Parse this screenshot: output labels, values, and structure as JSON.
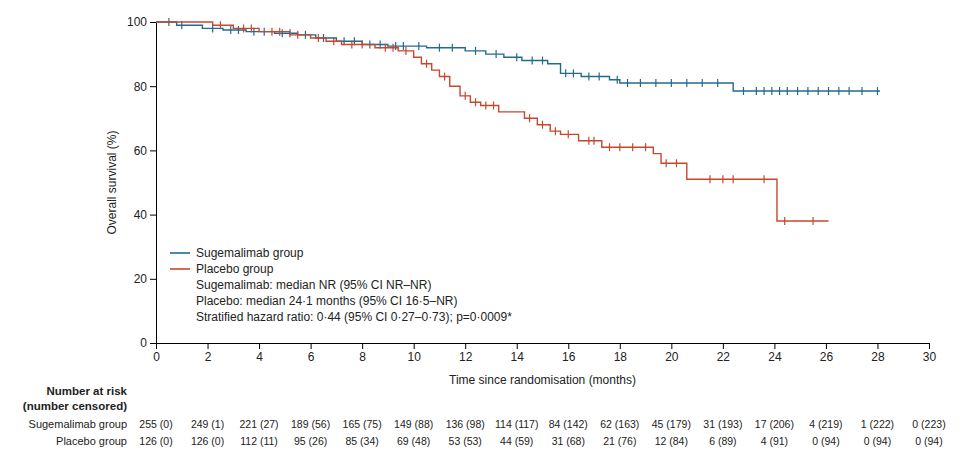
{
  "chart_data": {
    "type": "line",
    "x_label": "Time since randomisation (months)",
    "y_label": "Overall survival (%)",
    "xlim": [
      0,
      30
    ],
    "xticks": [
      0,
      2,
      4,
      6,
      8,
      10,
      12,
      14,
      16,
      18,
      20,
      22,
      24,
      26,
      28,
      30
    ],
    "ylim": [
      0,
      100
    ],
    "yticks": [
      0,
      20,
      40,
      60,
      80,
      100
    ],
    "legend": "bottom-left",
    "line_style": "step",
    "marker": "censor-tick",
    "series": [
      {
        "name": "Sugemalimab group",
        "color": "#236b8e",
        "x": [
          0,
          0.8,
          1.8,
          2.6,
          3.5,
          4.6,
          5.5,
          6.2,
          7,
          8,
          9,
          10.5,
          12,
          12.8,
          13.5,
          14.2,
          15.2,
          15.7,
          16.5,
          17.6,
          18,
          22.4,
          28.1
        ],
        "values": [
          100,
          99,
          98,
          97.5,
          97,
          96.5,
          96,
          95,
          94,
          93,
          92.5,
          92,
          91,
          90,
          89,
          88,
          87,
          84,
          83,
          82,
          81,
          78.5,
          78.5
        ],
        "censor_x": [
          0.5,
          1.0,
          2.2,
          2.9,
          3.2,
          3.8,
          4.2,
          4.9,
          5.2,
          5.8,
          6.5,
          7.3,
          7.7,
          8.3,
          8.7,
          9.3,
          9.6,
          10.2,
          11.0,
          11.5,
          12.4,
          13.2,
          14.0,
          14.6,
          15.0,
          15.9,
          16.2,
          16.8,
          17.2,
          17.9,
          18.3,
          18.8,
          19.4,
          20.0,
          20.6,
          21.2,
          21.8,
          22.8,
          23.3,
          23.6,
          23.9,
          24.2,
          24.5,
          24.9,
          25.3,
          25.7,
          26.1,
          26.5,
          26.9,
          27.4,
          28.0
        ],
        "censor_values": [
          100,
          99,
          98,
          97.5,
          97.5,
          97,
          97,
          96.5,
          96.5,
          96,
          95,
          94,
          94,
          93,
          93,
          92.5,
          92.5,
          92.5,
          92,
          92,
          91,
          90,
          89,
          88,
          88,
          84,
          84,
          83,
          83,
          82,
          81,
          81,
          81,
          81,
          81,
          81,
          81,
          78.5,
          78.5,
          78.5,
          78.5,
          78.5,
          78.5,
          78.5,
          78.5,
          78.5,
          78.5,
          78.5,
          78.5,
          78.5,
          78.5
        ]
      },
      {
        "name": "Placebo group",
        "color": "#c8472d",
        "x": [
          0,
          2.2,
          3.0,
          4.0,
          5.2,
          6.0,
          6.6,
          7.2,
          8.5,
          9.4,
          10.0,
          10.3,
          10.7,
          11.0,
          11.4,
          11.8,
          12.2,
          12.6,
          13.3,
          14.3,
          14.8,
          15.3,
          15.7,
          16.4,
          17.3,
          19.3,
          19.6,
          20.6,
          24.1,
          26.1
        ],
        "values": [
          100,
          99,
          98,
          97,
          96,
          95,
          94,
          93,
          92,
          91,
          89,
          87,
          85,
          83,
          80,
          77,
          75,
          74,
          72,
          70,
          68,
          66,
          65,
          63,
          61,
          59,
          56,
          51,
          38,
          38
        ],
        "censor_x": [
          2.5,
          3.4,
          3.7,
          4.5,
          4.8,
          5.5,
          6.3,
          6.9,
          7.6,
          8.0,
          8.9,
          9.2,
          9.7,
          10.5,
          11.2,
          12.0,
          12.4,
          12.8,
          13.1,
          14.5,
          15.0,
          15.5,
          16.0,
          16.8,
          17.0,
          17.6,
          18.0,
          18.5,
          19.0,
          19.8,
          20.2,
          21.5,
          22.0,
          22.4,
          23.6,
          24.4,
          25.5
        ],
        "censor_values": [
          99,
          98,
          98,
          97,
          97,
          96,
          95,
          94,
          93,
          93,
          92,
          92,
          91,
          87,
          83,
          77,
          75,
          74,
          74,
          70,
          68,
          66,
          65,
          63,
          63,
          61,
          61,
          61,
          61,
          56,
          56,
          51,
          51,
          51,
          51,
          38,
          38
        ]
      }
    ],
    "annotations": [
      "Sugemalimab: median NR (95% CI NR–NR)",
      "Placebo: median 24·1 months (95% CI 16·5–NR)",
      "Stratified hazard ratio: 0·44 (95% CI 0·27–0·73); p=0·0009*"
    ],
    "risk_table": {
      "title": "Number at risk",
      "subtitle": "(number censored)",
      "rows": [
        {
          "name": "Sugemalimab group",
          "cells": [
            "255 (0)",
            "249 (1)",
            "221 (27)",
            "189 (56)",
            "165 (75)",
            "149 (88)",
            "136 (98)",
            "114 (117)",
            "84 (142)",
            "62 (163)",
            "45 (179)",
            "31 (193)",
            "17 (206)",
            "4 (219)",
            "1 (222)",
            "0 (223)"
          ]
        },
        {
          "name": "Placebo group",
          "cells": [
            "126 (0)",
            "126 (0)",
            "112 (11)",
            "95 (26)",
            "85 (34)",
            "69 (48)",
            "53 (53)",
            "44 (59)",
            "31 (68)",
            "21 (76)",
            "12 (84)",
            "6 (89)",
            "4 (91)",
            "0 (94)",
            "0 (94)",
            "0 (94)"
          ]
        }
      ]
    }
  }
}
